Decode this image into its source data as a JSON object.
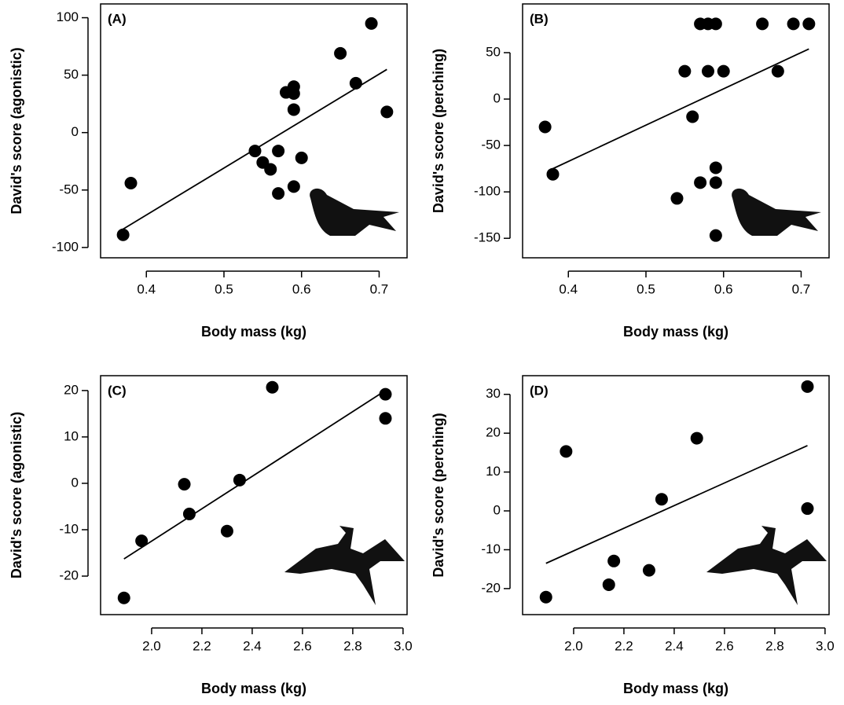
{
  "chart_data": [
    {
      "type": "scatter",
      "panel_label": "(A)",
      "xlabel": "Body mass (kg)",
      "ylabel": "David's score (agonistic)",
      "color": "#000000",
      "x": [
        0.37,
        0.38,
        0.54,
        0.55,
        0.56,
        0.57,
        0.57,
        0.58,
        0.59,
        0.59,
        0.59,
        0.59,
        0.6,
        0.65,
        0.67,
        0.69,
        0.71
      ],
      "values": [
        -89,
        -44,
        -16,
        -26,
        -32,
        -16,
        -53,
        35,
        40,
        34,
        20,
        -47,
        -22,
        69,
        43,
        95,
        18
      ],
      "trendline": {
        "x": [
          0.37,
          0.71
        ],
        "y": [
          -84,
          55
        ]
      },
      "xlim": [
        0.341,
        0.736
      ],
      "ylim": [
        -109,
        112
      ],
      "xticks": [
        0.4,
        0.5,
        0.6,
        0.7
      ],
      "yticks": [
        -100,
        -50,
        0,
        50,
        100
      ]
    },
    {
      "type": "scatter",
      "panel_label": "(B)",
      "xlabel": "Body mass (kg)",
      "ylabel": "David's score (perching)",
      "color": "#000000",
      "x": [
        0.37,
        0.38,
        0.54,
        0.55,
        0.56,
        0.57,
        0.57,
        0.58,
        0.58,
        0.59,
        0.59,
        0.59,
        0.59,
        0.6,
        0.65,
        0.67,
        0.69,
        0.71
      ],
      "values": [
        -30,
        -81,
        -107,
        30,
        -19,
        -90,
        81,
        81,
        30,
        81,
        -74,
        -90,
        -147,
        30,
        81,
        30,
        81,
        81
      ],
      "trendline": {
        "x": [
          0.38,
          0.71
        ],
        "y": [
          -75,
          54
        ]
      },
      "xlim": [
        0.341,
        0.736
      ],
      "ylim": [
        -171,
        102.5
      ],
      "xticks": [
        0.4,
        0.5,
        0.6,
        0.7
      ],
      "yticks": [
        -150,
        -100,
        -50,
        0,
        50
      ]
    },
    {
      "type": "scatter",
      "panel_label": "(C)",
      "xlabel": "Body mass (kg)",
      "ylabel": "David's score (agonistic)",
      "color": "#000000",
      "x": [
        1.89,
        1.96,
        2.13,
        2.15,
        2.3,
        2.35,
        2.48,
        2.93,
        2.93
      ],
      "values": [
        -24.7,
        -12.4,
        -0.2,
        -6.6,
        -10.3,
        0.7,
        20.7,
        19.2,
        14
      ],
      "trendline": {
        "x": [
          1.89,
          2.93
        ],
        "y": [
          -16.3,
          20
        ]
      },
      "xlim": [
        1.797,
        3.016
      ],
      "ylim": [
        -28.3,
        23.2
      ],
      "xticks": [
        {
          "value": 2,
          "label": "2.0"
        },
        2.2,
        2.4,
        2.6,
        2.8,
        {
          "value": 3,
          "label": "3.0"
        }
      ],
      "yticks": [
        -20,
        -10,
        0,
        10,
        20
      ]
    },
    {
      "type": "scatter",
      "panel_label": "(D)",
      "xlabel": "Body mass (kg)",
      "ylabel": "David's score (perching)",
      "color": "#000000",
      "x": [
        1.89,
        1.97,
        2.14,
        2.16,
        2.3,
        2.35,
        2.49,
        2.93,
        2.93
      ],
      "values": [
        -22.2,
        15.3,
        -19,
        -12.9,
        -15.3,
        3,
        18.7,
        32,
        0.6
      ],
      "trendline": {
        "x": [
          1.89,
          2.93
        ],
        "y": [
          -13.5,
          16.8
        ]
      },
      "xlim": [
        1.797,
        3.016
      ],
      "ylim": [
        -26.7,
        34.8
      ],
      "xticks": [
        {
          "value": 2,
          "label": "2.0"
        },
        2.2,
        2.4,
        2.6,
        2.8,
        {
          "value": 3,
          "label": "3.0"
        }
      ],
      "yticks": [
        -20,
        -10,
        0,
        10,
        20,
        30
      ]
    }
  ]
}
